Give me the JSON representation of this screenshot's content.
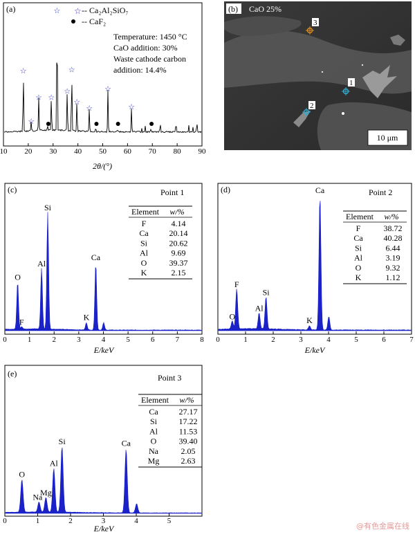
{
  "panels": {
    "a": {
      "label": "(a)",
      "legend": [
        {
          "marker": "star",
          "text": "-- Ca₂Al₂SiO₇"
        },
        {
          "marker": "dot",
          "text": "-- CaF₂"
        }
      ],
      "info": [
        "Temperature: 1450 °C",
        "CaO addition: 30%",
        "Waste cathode carbon",
        "addition: 14.4%"
      ],
      "xlabel": "2θ/(°)"
    },
    "b": {
      "label": "(b)",
      "title": "CaO 25%",
      "scale_bar": "10 μm",
      "points": [
        {
          "label": "1",
          "color": "#33aacc"
        },
        {
          "label": "2",
          "color": "#33aacc"
        },
        {
          "label": "3",
          "color": "#d98a1f"
        }
      ]
    },
    "c": {
      "label": "(c)",
      "point": "Point 1",
      "xlabel": "E/keV"
    },
    "d": {
      "label": "(d)",
      "point": "Point 2",
      "xlabel": "E/keV"
    },
    "e": {
      "label": "(e)",
      "point": "Point 3",
      "xlabel": "E/keV"
    }
  },
  "table_headers": {
    "element": "Element",
    "value": "w/%"
  },
  "watermark": "@有色金属在线",
  "chart_data": [
    {
      "panel": "a",
      "type": "line",
      "title": "",
      "xlabel": "2θ/(°)",
      "ylabel": "",
      "xlim": [
        10,
        90
      ],
      "xticks": [
        10,
        20,
        30,
        40,
        50,
        60,
        70,
        80,
        90
      ],
      "color": "#000000",
      "peaks": [
        {
          "x": 18.0,
          "h": 0.5,
          "phase": "star"
        },
        {
          "x": 21.2,
          "h": 0.08,
          "phase": "star"
        },
        {
          "x": 24.2,
          "h": 0.28,
          "phase": "star"
        },
        {
          "x": 27.8,
          "h": 0.04,
          "phase": "dot"
        },
        {
          "x": 29.3,
          "h": 0.28,
          "phase": "star"
        },
        {
          "x": 31.6,
          "h": 1.0,
          "phase": "star"
        },
        {
          "x": 35.7,
          "h": 0.33,
          "phase": "star"
        },
        {
          "x": 37.5,
          "h": 0.51,
          "phase": "star"
        },
        {
          "x": 39.6,
          "h": 0.24,
          "phase": "star"
        },
        {
          "x": 44.6,
          "h": 0.19,
          "phase": "star"
        },
        {
          "x": 47.2,
          "h": 0.03,
          "phase": "dot"
        },
        {
          "x": 52.1,
          "h": 0.35,
          "phase": "star"
        },
        {
          "x": 55.9,
          "h": 0.02,
          "phase": "dot"
        },
        {
          "x": 61.6,
          "h": 0.2,
          "phase": "star"
        },
        {
          "x": 69.4,
          "h": 0.02,
          "phase": "dot"
        }
      ]
    },
    {
      "panel": "c",
      "type": "line",
      "title": "Point 1",
      "xlabel": "E/keV",
      "xlim": [
        0,
        8
      ],
      "xticks": [
        0,
        1,
        2,
        3,
        4,
        5,
        6,
        7,
        8
      ],
      "color": "#1a22c8",
      "peaks": [
        {
          "label": "O",
          "x": 0.52,
          "h": 0.39
        },
        {
          "label": "F",
          "x": 0.68,
          "h": 0.02
        },
        {
          "label": "Al",
          "x": 1.49,
          "h": 0.5
        },
        {
          "label": "Si",
          "x": 1.74,
          "h": 0.96
        },
        {
          "label": "K",
          "x": 3.31,
          "h": 0.06
        },
        {
          "label": "Ca",
          "x": 3.69,
          "h": 0.55
        },
        {
          "label": "",
          "x": 4.01,
          "h": 0.06
        }
      ],
      "table": [
        {
          "element": "F",
          "value": "4.14"
        },
        {
          "element": "Ca",
          "value": "20.14"
        },
        {
          "element": "Si",
          "value": "20.62"
        },
        {
          "element": "Al",
          "value": "9.69"
        },
        {
          "element": "O",
          "value": "39.37"
        },
        {
          "element": "K",
          "value": "2.15"
        }
      ]
    },
    {
      "panel": "d",
      "type": "line",
      "title": "Point 2",
      "xlabel": "E/keV",
      "xlim": [
        0,
        7
      ],
      "xticks": [
        0,
        1,
        2,
        3,
        4,
        5,
        6,
        7
      ],
      "color": "#1a22c8",
      "peaks": [
        {
          "label": "O",
          "x": 0.52,
          "h": 0.06
        },
        {
          "label": "F",
          "x": 0.68,
          "h": 0.3
        },
        {
          "label": "Al",
          "x": 1.49,
          "h": 0.12
        },
        {
          "label": "Si",
          "x": 1.74,
          "h": 0.24
        },
        {
          "label": "K",
          "x": 3.31,
          "h": 0.03
        },
        {
          "label": "Ca",
          "x": 3.69,
          "h": 1.0
        },
        {
          "label": "",
          "x": 4.01,
          "h": 0.1
        }
      ],
      "table": [
        {
          "element": "F",
          "value": "38.72"
        },
        {
          "element": "Ca",
          "value": "40.28"
        },
        {
          "element": "Si",
          "value": "6.44"
        },
        {
          "element": "Al",
          "value": "3.19"
        },
        {
          "element": "O",
          "value": "9.32"
        },
        {
          "element": "K",
          "value": "1.12"
        }
      ]
    },
    {
      "panel": "e",
      "type": "line",
      "title": "Point 3",
      "xlabel": "E/keV",
      "xlim": [
        0,
        6
      ],
      "xticks": [
        0,
        1,
        2,
        3,
        4,
        5
      ],
      "color": "#1a22c8",
      "peaks": [
        {
          "label": "O",
          "x": 0.52,
          "h": 0.36
        },
        {
          "label": "Na",
          "x": 1.04,
          "h": 0.11
        },
        {
          "label": "Mg",
          "x": 1.25,
          "h": 0.16
        },
        {
          "label": "Al",
          "x": 1.49,
          "h": 0.48
        },
        {
          "label": "Si",
          "x": 1.74,
          "h": 0.72
        },
        {
          "label": "Ca",
          "x": 3.69,
          "h": 0.7
        },
        {
          "label": "",
          "x": 4.01,
          "h": 0.1
        }
      ],
      "table": [
        {
          "element": "Ca",
          "value": "27.17"
        },
        {
          "element": "Si",
          "value": "17.22"
        },
        {
          "element": "Al",
          "value": "11.53"
        },
        {
          "element": "O",
          "value": "39.40"
        },
        {
          "element": "Na",
          "value": "2.05"
        },
        {
          "element": "Mg",
          "value": "2.63"
        }
      ]
    }
  ]
}
